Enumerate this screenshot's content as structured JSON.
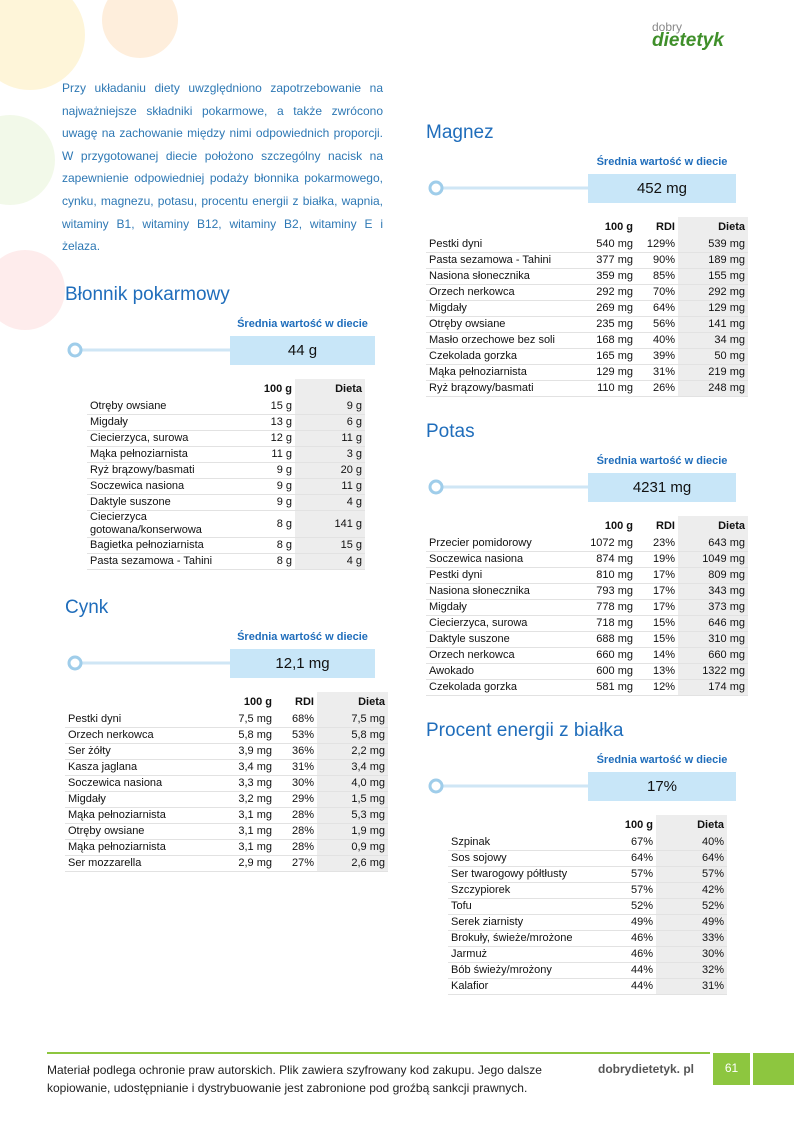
{
  "logo": {
    "top": "dobry",
    "main": "dietetyk"
  },
  "intro": "Przy układaniu diety uwzględniono zapotrzebowanie na najważniejsze składniki pokarmowe, a także zwrócono uwagę na zachowanie między nimi odpowiednich proporcji. W przygotowanej diecie położono szczególny nacisk na zapewnienie odpowiedniej podaży błonnika pokarmowego, cynku, magnezu, potasu, procentu energii z białka, wapnia, witaminy B1, witaminy B12, witaminy B2, witaminy E i żelaza.",
  "sections": [
    {
      "title": "Błonnik pokarmowy",
      "average_label": "Średnia wartość w diecie",
      "average_value": "44 g",
      "headers": [
        "100 g",
        "Dieta"
      ],
      "rows": [
        [
          "Otręby owsiane",
          "15 g",
          "9 g"
        ],
        [
          "Migdały",
          "13 g",
          "6 g"
        ],
        [
          "Ciecierzyca, surowa",
          "12 g",
          "11 g"
        ],
        [
          "Mąka pełnoziarnista",
          "11 g",
          "3 g"
        ],
        [
          "Ryż brązowy/basmati",
          "9 g",
          "20 g"
        ],
        [
          "Soczewica nasiona",
          "9 g",
          "11 g"
        ],
        [
          "Daktyle suszone",
          "9 g",
          "4 g"
        ],
        [
          "Ciecierzyca gotowana/konserwowa",
          "8 g",
          "141 g"
        ],
        [
          "Bagietka pełnoziarnista",
          "8 g",
          "15 g"
        ],
        [
          "Pasta sezamowa - Tahini",
          "8 g",
          "4 g"
        ]
      ]
    },
    {
      "title": "Cynk",
      "average_label": "Średnia wartość w diecie",
      "average_value": "12,1 mg",
      "headers": [
        "100 g",
        "RDI",
        "Dieta"
      ],
      "rows": [
        [
          "Pestki dyni",
          "7,5 mg",
          "68%",
          "7,5 mg"
        ],
        [
          "Orzech nerkowca",
          "5,8 mg",
          "53%",
          "5,8 mg"
        ],
        [
          "Ser żółty",
          "3,9 mg",
          "36%",
          "2,2 mg"
        ],
        [
          "Kasza jaglana",
          "3,4 mg",
          "31%",
          "3,4 mg"
        ],
        [
          "Soczewica nasiona",
          "3,3 mg",
          "30%",
          "4,0 mg"
        ],
        [
          "Migdały",
          "3,2 mg",
          "29%",
          "1,5 mg"
        ],
        [
          "Mąka pełnoziarnista",
          "3,1 mg",
          "28%",
          "5,3 mg"
        ],
        [
          "Otręby owsiane",
          "3,1 mg",
          "28%",
          "1,9 mg"
        ],
        [
          "Mąka pełnoziarnista",
          "3,1 mg",
          "28%",
          "0,9 mg"
        ],
        [
          "Ser mozzarella",
          "2,9 mg",
          "27%",
          "2,6 mg"
        ]
      ]
    },
    {
      "title": "Magnez",
      "average_label": "Średnia wartość w diecie",
      "average_value": "452 mg",
      "headers": [
        "100 g",
        "RDI",
        "Dieta"
      ],
      "rows": [
        [
          "Pestki dyni",
          "540 mg",
          "129%",
          "539 mg"
        ],
        [
          "Pasta sezamowa - Tahini",
          "377 mg",
          "90%",
          "189 mg"
        ],
        [
          "Nasiona słonecznika",
          "359 mg",
          "85%",
          "155 mg"
        ],
        [
          "Orzech nerkowca",
          "292 mg",
          "70%",
          "292 mg"
        ],
        [
          "Migdały",
          "269 mg",
          "64%",
          "129 mg"
        ],
        [
          "Otręby owsiane",
          "235 mg",
          "56%",
          "141 mg"
        ],
        [
          "Masło orzechowe bez soli",
          "168 mg",
          "40%",
          "34 mg"
        ],
        [
          "Czekolada gorzka",
          "165 mg",
          "39%",
          "50 mg"
        ],
        [
          "Mąka pełnoziarnista",
          "129 mg",
          "31%",
          "219 mg"
        ],
        [
          "Ryż brązowy/basmati",
          "110 mg",
          "26%",
          "248 mg"
        ]
      ]
    },
    {
      "title": "Potas",
      "average_label": "Średnia wartość w diecie",
      "average_value": "4231 mg",
      "headers": [
        "100 g",
        "RDI",
        "Dieta"
      ],
      "rows": [
        [
          "Przecier pomidorowy",
          "1072 mg",
          "23%",
          "643 mg"
        ],
        [
          "Soczewica nasiona",
          "874 mg",
          "19%",
          "1049 mg"
        ],
        [
          "Pestki dyni",
          "810 mg",
          "17%",
          "809 mg"
        ],
        [
          "Nasiona słonecznika",
          "793 mg",
          "17%",
          "343 mg"
        ],
        [
          "Migdały",
          "778 mg",
          "17%",
          "373 mg"
        ],
        [
          "Ciecierzyca, surowa",
          "718 mg",
          "15%",
          "646 mg"
        ],
        [
          "Daktyle suszone",
          "688 mg",
          "15%",
          "310 mg"
        ],
        [
          "Orzech nerkowca",
          "660 mg",
          "14%",
          "660 mg"
        ],
        [
          "Awokado",
          "600 mg",
          "13%",
          "1322 mg"
        ],
        [
          "Czekolada gorzka",
          "581 mg",
          "12%",
          "174 mg"
        ]
      ]
    },
    {
      "title": "Procent energii z białka",
      "average_label": "Średnia wartość w diecie",
      "average_value": "17%",
      "headers": [
        "100 g",
        "Dieta"
      ],
      "rows": [
        [
          "Szpinak",
          "67%",
          "40%"
        ],
        [
          "Sos sojowy",
          "64%",
          "64%"
        ],
        [
          "Ser twarogowy półtłusty",
          "57%",
          "57%"
        ],
        [
          "Szczypiorek",
          "57%",
          "42%"
        ],
        [
          "Tofu",
          "52%",
          "52%"
        ],
        [
          "Serek ziarnisty",
          "49%",
          "49%"
        ],
        [
          "Brokuły, świeże/mrożone",
          "46%",
          "33%"
        ],
        [
          "Jarmuż",
          "46%",
          "30%"
        ],
        [
          "Bób świeży/mrożony",
          "44%",
          "32%"
        ],
        [
          "Kalafior",
          "44%",
          "31%"
        ]
      ]
    }
  ],
  "footer": {
    "notice": "Materiał podlega ochronie praw autorskich. Plik zawiera szyfrowany kod zakupu. Jego dalsze kopiowanie, udostępnianie i dystrybuowanie jest zabronione pod groźbą sankcji prawnych.",
    "site": "dobrydietetyk. pl",
    "page": "61"
  }
}
